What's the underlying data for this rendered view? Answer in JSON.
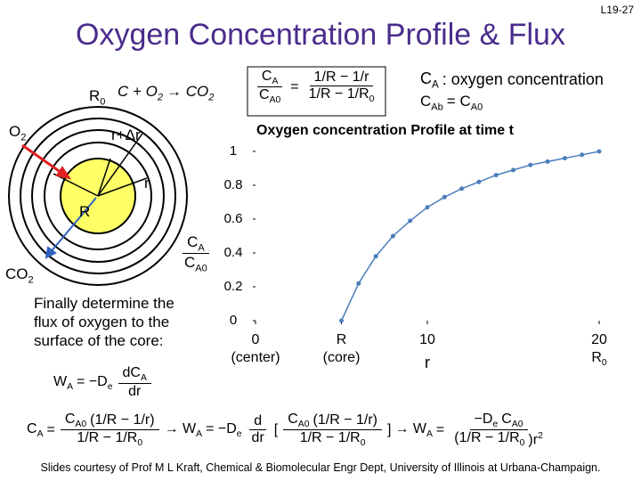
{
  "slide_number": "L19-27",
  "title": "Oxygen Concentration Profile & Flux",
  "reaction": [
    {
      "t": "C + O",
      "sub": "2"
    },
    {
      "t": "→ CO",
      "sub": "2"
    }
  ],
  "ratio_equation": [
    {
      "num": [
        {
          "t": "C",
          "sub": "A"
        }
      ],
      "den": [
        {
          "t": "C",
          "sub": "A0"
        }
      ]
    },
    {
      "t": "="
    },
    {
      "num": [
        {
          "t": "1/R − 1/r"
        }
      ],
      "den": [
        {
          "t": "1/R − 1/R",
          "sub": "0"
        }
      ]
    }
  ],
  "definitions": [
    [
      {
        "t": "C",
        "sub": "A"
      },
      {
        "t": ": oxygen concentration"
      }
    ],
    [
      {
        "t": "C",
        "sub": "Ab"
      },
      {
        "t": " = C",
        "sub": "A0"
      }
    ]
  ],
  "diagram_labels": {
    "outer_radius": [
      {
        "t": "R",
        "sub": "0"
      }
    ],
    "oxygen": [
      {
        "t": "O",
        "sub": "2"
      }
    ],
    "shell": [
      {
        "t": "r+Δr"
      }
    ],
    "radius": [
      {
        "t": "r"
      }
    ],
    "core": [
      {
        "t": "R"
      }
    ],
    "carbon_dioxide": [
      {
        "t": "CO",
        "sub": "2"
      }
    ]
  },
  "note": "Finally determine the flux of oxygen to the surface of the core:",
  "flux_definition": [
    {
      "t": "W",
      "sub": "A"
    },
    {
      "t": "= −D",
      "sub": "e"
    },
    {
      "num": [
        {
          "t": "dC",
          "sub": "A"
        }
      ],
      "den": [
        {
          "t": "dr"
        }
      ]
    }
  ],
  "derivation": [
    {
      "t": "C",
      "sub": "A"
    },
    {
      "t": "="
    },
    {
      "num": [
        {
          "t": "C",
          "sub": "A0"
        },
        {
          "t": "(1/R − 1/r)"
        }
      ],
      "den": [
        {
          "t": "1/R − 1/R",
          "sub": "0"
        }
      ]
    },
    {
      "t": "→ W",
      "sub": "A"
    },
    {
      "t": "= −D",
      "sub": "e"
    },
    {
      "num": [
        {
          "t": "d"
        }
      ],
      "den": [
        {
          "t": "dr"
        }
      ]
    },
    {
      "t": "["
    },
    {
      "num": [
        {
          "t": "C",
          "sub": "A0"
        },
        {
          "t": "(1/R − 1/r)"
        }
      ],
      "den": [
        {
          "t": "1/R − 1/R",
          "sub": "0"
        }
      ]
    },
    {
      "t": "]"
    },
    {
      "t": "→ W",
      "sub": "A"
    },
    {
      "t": "="
    },
    {
      "num": [
        {
          "t": "−D",
          "sub": "e"
        },
        {
          "t": "C",
          "sub": "A0"
        }
      ],
      "den": [
        {
          "t": "(1/R − 1/R",
          "sub": "0"
        },
        {
          "t": ")r",
          "sup": "2"
        }
      ]
    }
  ],
  "footer": "Slides courtesy of Prof M L Kraft, Chemical & Biomolecular Engr Dept, University of Illinois at Urbana-Champaign.",
  "chart_data": {
    "type": "line",
    "title": "Oxygen concentration Profile at time t",
    "ylabel": [
      {
        "num": [
          {
            "t": "C",
            "sub": "A"
          }
        ],
        "den": [
          {
            "t": "C",
            "sub": "A0"
          }
        ]
      }
    ],
    "xlabel": "r",
    "x": [
      5,
      6,
      7,
      8,
      9,
      10,
      11,
      12,
      13,
      14,
      15,
      16,
      17,
      18,
      19,
      20
    ],
    "series": [
      {
        "color": "#4a7ebb",
        "values": [
          0,
          0.22,
          0.38,
          0.5,
          0.59,
          0.67,
          0.73,
          0.78,
          0.82,
          0.86,
          0.89,
          0.92,
          0.94,
          0.96,
          0.98,
          1
        ]
      }
    ],
    "xlim": [
      0,
      20
    ],
    "ylim": [
      0,
      1
    ],
    "xticks": [
      0,
      {
        "value": 5,
        "label": "R"
      },
      10,
      20
    ],
    "xtick_sublabels": [
      [
        {
          "t": "(center)"
        }
      ],
      [
        {
          "t": "(core)"
        }
      ],
      null,
      [
        {
          "t": "R",
          "sub": "0"
        }
      ]
    ],
    "yticks": [
      0,
      0.2,
      0.4,
      0.6,
      0.8,
      1
    ]
  }
}
